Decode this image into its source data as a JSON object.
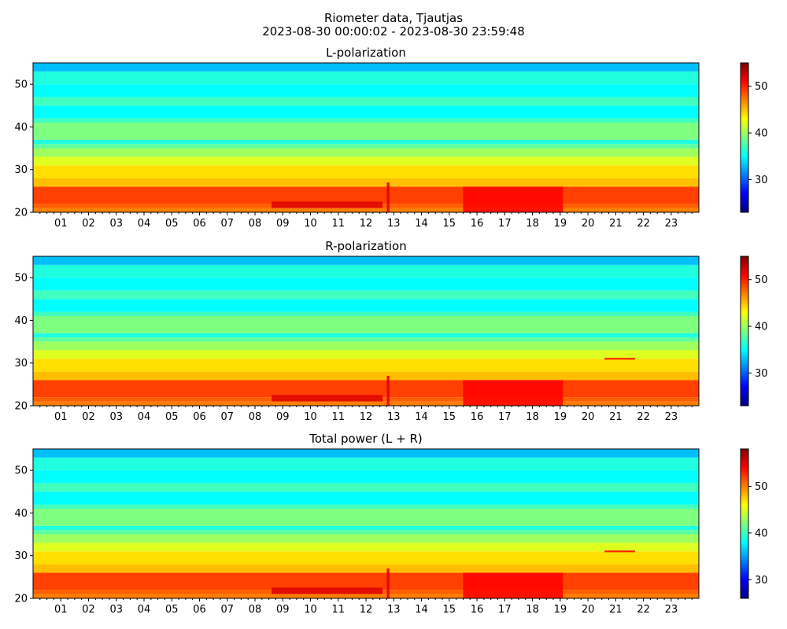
{
  "title": "Riometer data, Tjautjas",
  "subtitle": "2023-08-30 00:00:02 - 2023-08-30 23:59:48",
  "hour_labels": [
    "01",
    "02",
    "03",
    "04",
    "05",
    "06",
    "07",
    "08",
    "09",
    "10",
    "11",
    "12",
    "13",
    "14",
    "15",
    "16",
    "17",
    "18",
    "19",
    "20",
    "21",
    "22",
    "23"
  ],
  "colormap": [
    "#00007f",
    "#0000ff",
    "#007fff",
    "#00ffff",
    "#7fff7f",
    "#ffff00",
    "#ff7f00",
    "#ff0000",
    "#7f0000"
  ],
  "chart_data": [
    {
      "type": "heatmap",
      "title": "L-polarization",
      "xlim": [
        "2023-08-30 00:00:02",
        "2023-08-30 23:59:48"
      ],
      "ylim": [
        20,
        55
      ],
      "yticks": [
        20,
        30,
        40,
        50
      ],
      "colorbar": {
        "range": [
          23,
          55
        ],
        "ticks": [
          30,
          40,
          50
        ]
      },
      "rows": [
        {
          "y": [
            20,
            21
          ],
          "value": 47
        },
        {
          "y": [
            21,
            22
          ],
          "value": 48
        },
        {
          "y": [
            22,
            26
          ],
          "value": 49
        },
        {
          "y": [
            26,
            28
          ],
          "value": 45
        },
        {
          "y": [
            28,
            31
          ],
          "value": 44
        },
        {
          "y": [
            31,
            33
          ],
          "value": 42
        },
        {
          "y": [
            33,
            35
          ],
          "value": 40
        },
        {
          "y": [
            35,
            36
          ],
          "value": 38
        },
        {
          "y": [
            36,
            37
          ],
          "value": 36
        },
        {
          "y": [
            37,
            41
          ],
          "value": 39
        },
        {
          "y": [
            41,
            42
          ],
          "value": 37
        },
        {
          "y": [
            42,
            45
          ],
          "value": 35
        },
        {
          "y": [
            45,
            47
          ],
          "value": 37
        },
        {
          "y": [
            47,
            50
          ],
          "value": 35
        },
        {
          "y": [
            50,
            53
          ],
          "value": 36
        },
        {
          "y": [
            53,
            55
          ],
          "value": 33
        }
      ],
      "enhancements": [
        {
          "t": [
            8.6,
            12.6
          ],
          "y": [
            21,
            22.5
          ],
          "value": 52
        },
        {
          "t": [
            15.5,
            19.1
          ],
          "y": [
            20,
            26
          ],
          "value": 51
        },
        {
          "t": [
            12.75,
            12.85
          ],
          "y": [
            20,
            27
          ],
          "value": 52
        }
      ]
    },
    {
      "type": "heatmap",
      "title": "R-polarization",
      "xlim": [
        "2023-08-30 00:00:02",
        "2023-08-30 23:59:48"
      ],
      "ylim": [
        20,
        55
      ],
      "yticks": [
        20,
        30,
        40,
        50
      ],
      "colorbar": {
        "range": [
          23,
          55
        ],
        "ticks": [
          30,
          40,
          50
        ]
      },
      "rows": [
        {
          "y": [
            20,
            21
          ],
          "value": 47
        },
        {
          "y": [
            21,
            22
          ],
          "value": 48
        },
        {
          "y": [
            22,
            26
          ],
          "value": 49
        },
        {
          "y": [
            26,
            28
          ],
          "value": 45
        },
        {
          "y": [
            28,
            31
          ],
          "value": 44
        },
        {
          "y": [
            31,
            33
          ],
          "value": 42
        },
        {
          "y": [
            33,
            35
          ],
          "value": 40
        },
        {
          "y": [
            35,
            36
          ],
          "value": 38
        },
        {
          "y": [
            36,
            37
          ],
          "value": 36
        },
        {
          "y": [
            37,
            41
          ],
          "value": 39
        },
        {
          "y": [
            41,
            42
          ],
          "value": 37
        },
        {
          "y": [
            42,
            45
          ],
          "value": 35
        },
        {
          "y": [
            45,
            47
          ],
          "value": 37
        },
        {
          "y": [
            47,
            50
          ],
          "value": 35
        },
        {
          "y": [
            50,
            53
          ],
          "value": 36
        },
        {
          "y": [
            53,
            55
          ],
          "value": 33
        }
      ],
      "enhancements": [
        {
          "t": [
            8.6,
            12.6
          ],
          "y": [
            21,
            22.5
          ],
          "value": 52
        },
        {
          "t": [
            15.5,
            19.1
          ],
          "y": [
            20,
            26
          ],
          "value": 51
        },
        {
          "t": [
            12.75,
            12.85
          ],
          "y": [
            20,
            27
          ],
          "value": 52
        },
        {
          "t": [
            20.6,
            21.7
          ],
          "y": [
            30.8,
            31.2
          ],
          "value": 51
        }
      ]
    },
    {
      "type": "heatmap",
      "title": "Total power (L + R)",
      "xlim": [
        "2023-08-30 00:00:02",
        "2023-08-30 23:59:48"
      ],
      "ylim": [
        20,
        55
      ],
      "yticks": [
        20,
        30,
        40,
        50
      ],
      "colorbar": {
        "range": [
          26,
          58
        ],
        "ticks": [
          30,
          40,
          50
        ]
      },
      "rows": [
        {
          "y": [
            20,
            21
          ],
          "value": 50
        },
        {
          "y": [
            21,
            22
          ],
          "value": 51
        },
        {
          "y": [
            22,
            26
          ],
          "value": 52
        },
        {
          "y": [
            26,
            28
          ],
          "value": 48
        },
        {
          "y": [
            28,
            31
          ],
          "value": 47
        },
        {
          "y": [
            31,
            33
          ],
          "value": 45
        },
        {
          "y": [
            33,
            35
          ],
          "value": 43
        },
        {
          "y": [
            35,
            36
          ],
          "value": 41
        },
        {
          "y": [
            36,
            37
          ],
          "value": 39
        },
        {
          "y": [
            37,
            41
          ],
          "value": 42
        },
        {
          "y": [
            41,
            42
          ],
          "value": 40
        },
        {
          "y": [
            42,
            45
          ],
          "value": 38
        },
        {
          "y": [
            45,
            47
          ],
          "value": 40
        },
        {
          "y": [
            47,
            50
          ],
          "value": 38
        },
        {
          "y": [
            50,
            53
          ],
          "value": 39
        },
        {
          "y": [
            53,
            55
          ],
          "value": 36
        }
      ],
      "enhancements": [
        {
          "t": [
            8.6,
            12.6
          ],
          "y": [
            21,
            22.5
          ],
          "value": 55
        },
        {
          "t": [
            15.5,
            19.1
          ],
          "y": [
            20,
            26
          ],
          "value": 54
        },
        {
          "t": [
            12.75,
            12.85
          ],
          "y": [
            20,
            27
          ],
          "value": 55
        },
        {
          "t": [
            20.6,
            21.7
          ],
          "y": [
            30.8,
            31.2
          ],
          "value": 54
        }
      ]
    }
  ]
}
